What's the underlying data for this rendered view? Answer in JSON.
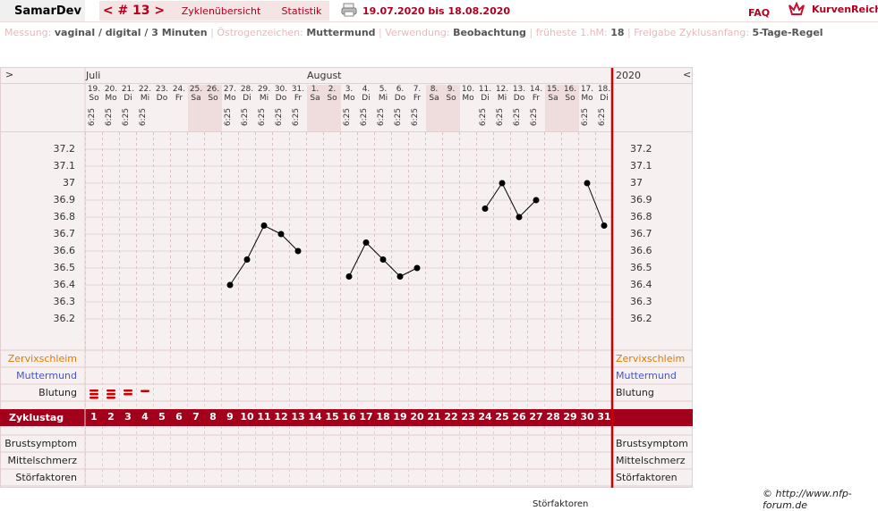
{
  "header": {
    "user": "SamarDev",
    "cycle_nav": "< # 13 >",
    "tab_overview": "Zyklenübersicht",
    "tab_stats": "Statistik",
    "date_range": "19.07.2020 bis 18.08.2020",
    "faq": "FAQ",
    "brand": "KurvenReich"
  },
  "info": {
    "messung_label": "Messung:",
    "messung_value": "vaginal / digital / 3 Minuten",
    "oestrogen_label": "Östrogenzeichen:",
    "oestrogen_value": "Muttermund",
    "verwendung_label": "Verwendung:",
    "verwendung_value": "Beobachtung",
    "fhm_label": "früheste 1.hM:",
    "fhm_value": "18",
    "freigabe_label": "Freigabe Zyklusanfang:",
    "freigabe_value": "5-Tage-Regel"
  },
  "chart_nav": {
    "left": ">",
    "right": "<",
    "year": "2020"
  },
  "months": {
    "july": "Juli",
    "august": "August"
  },
  "row_labels": {
    "zervix": "Zervixschleim",
    "muttermund": "Muttermund",
    "blutung": "Blutung",
    "zyklustag": "Zyklustag",
    "brust": "Brustsymptom",
    "mittel": "Mittelschmerz",
    "stoer": "Störfaktoren"
  },
  "footer": {
    "copyright": "© http://www.nfp-forum.de",
    "cut_text": "Störfaktoren"
  },
  "colors": {
    "accent": "#a3001b",
    "zervix": "#e07b00",
    "muttermund": "#4455cc",
    "blood": "#cc0000"
  },
  "chart_data": {
    "type": "line",
    "x_label": "Zyklustag",
    "ylim": [
      36.2,
      37.2
    ],
    "y_ticks": [
      "37.2",
      "37.1",
      "37",
      "36.9",
      "36.8",
      "36.7",
      "36.6",
      "36.5",
      "36.4",
      "36.3",
      "36.2"
    ],
    "days": [
      {
        "d": "19.",
        "w": "So",
        "t": "6:25",
        "we": false
      },
      {
        "d": "20.",
        "w": "Mo",
        "t": "6:25",
        "we": false
      },
      {
        "d": "21.",
        "w": "Di",
        "t": "6:25",
        "we": false
      },
      {
        "d": "22.",
        "w": "Mi",
        "t": "6:25",
        "we": false
      },
      {
        "d": "23.",
        "w": "Do",
        "t": "",
        "we": false
      },
      {
        "d": "24.",
        "w": "Fr",
        "t": "",
        "we": false
      },
      {
        "d": "25.",
        "w": "Sa",
        "t": "",
        "we": true
      },
      {
        "d": "26.",
        "w": "So",
        "t": "",
        "we": true
      },
      {
        "d": "27.",
        "w": "Mo",
        "t": "6:25",
        "we": false
      },
      {
        "d": "28.",
        "w": "Di",
        "t": "6:25",
        "we": false
      },
      {
        "d": "29.",
        "w": "Mi",
        "t": "6:25",
        "we": false
      },
      {
        "d": "30.",
        "w": "Do",
        "t": "6:25",
        "we": false
      },
      {
        "d": "31.",
        "w": "Fr",
        "t": "6:25",
        "we": false
      },
      {
        "d": "1.",
        "w": "Sa",
        "t": "",
        "we": true
      },
      {
        "d": "2.",
        "w": "So",
        "t": "",
        "we": true
      },
      {
        "d": "3.",
        "w": "Mo",
        "t": "6:25",
        "we": false
      },
      {
        "d": "4.",
        "w": "Di",
        "t": "6:25",
        "we": false
      },
      {
        "d": "5.",
        "w": "Mi",
        "t": "6:25",
        "we": false
      },
      {
        "d": "6.",
        "w": "Do",
        "t": "6:25",
        "we": false
      },
      {
        "d": "7.",
        "w": "Fr",
        "t": "6:25",
        "we": false
      },
      {
        "d": "8.",
        "w": "Sa",
        "t": "",
        "we": true
      },
      {
        "d": "9.",
        "w": "So",
        "t": "",
        "we": true
      },
      {
        "d": "10.",
        "w": "Mo",
        "t": "",
        "we": false
      },
      {
        "d": "11.",
        "w": "Di",
        "t": "6:25",
        "we": false
      },
      {
        "d": "12.",
        "w": "Mi",
        "t": "6:25",
        "we": false
      },
      {
        "d": "13.",
        "w": "Do",
        "t": "6:25",
        "we": false
      },
      {
        "d": "14.",
        "w": "Fr",
        "t": "6:25",
        "we": false
      },
      {
        "d": "15.",
        "w": "Sa",
        "t": "",
        "we": true
      },
      {
        "d": "16.",
        "w": "So",
        "t": "",
        "we": true
      },
      {
        "d": "17.",
        "w": "Mo",
        "t": "6:25",
        "we": false
      },
      {
        "d": "18.",
        "w": "Di",
        "t": "6:25",
        "we": false
      }
    ],
    "cycle_days": [
      "1",
      "2",
      "3",
      "4",
      "5",
      "6",
      "7",
      "8",
      "9",
      "10",
      "11",
      "12",
      "13",
      "14",
      "15",
      "16",
      "17",
      "18",
      "19",
      "20",
      "21",
      "22",
      "23",
      "24",
      "25",
      "26",
      "27",
      "28",
      "29",
      "30",
      "31"
    ],
    "temperatures": [
      null,
      null,
      null,
      null,
      null,
      null,
      null,
      null,
      36.4,
      36.55,
      36.75,
      36.7,
      36.6,
      null,
      null,
      36.45,
      36.65,
      36.55,
      36.45,
      36.5,
      null,
      null,
      null,
      36.85,
      37.0,
      36.8,
      36.9,
      null,
      null,
      37.0,
      36.75
    ],
    "bleeding": [
      3,
      3,
      2,
      1,
      0,
      0,
      0,
      0,
      0,
      0,
      0,
      0,
      0,
      0,
      0,
      0,
      0,
      0,
      0,
      0,
      0,
      0,
      0,
      0,
      0,
      0,
      0,
      0,
      0,
      0,
      0
    ]
  }
}
